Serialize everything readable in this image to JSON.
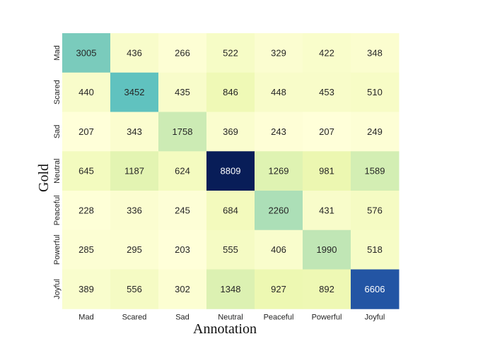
{
  "chart_data": {
    "type": "heatmap",
    "xlabel": "Annotation",
    "ylabel": "Gold",
    "x_categories": [
      "Mad",
      "Scared",
      "Sad",
      "Neutral",
      "Peaceful",
      "Powerful",
      "Joyful"
    ],
    "y_categories": [
      "Mad",
      "Scared",
      "Sad",
      "Neutral",
      "Peaceful",
      "Powerful",
      "Joyful"
    ],
    "values": [
      [
        3005,
        436,
        266,
        522,
        329,
        422,
        348
      ],
      [
        440,
        3452,
        435,
        846,
        448,
        453,
        510
      ],
      [
        207,
        343,
        1758,
        369,
        243,
        207,
        249
      ],
      [
        645,
        1187,
        624,
        8809,
        1269,
        981,
        1589
      ],
      [
        228,
        336,
        245,
        684,
        2260,
        431,
        576
      ],
      [
        285,
        295,
        203,
        555,
        406,
        1990,
        518
      ],
      [
        389,
        556,
        302,
        1348,
        927,
        892,
        6606
      ]
    ],
    "colormap": "YlGnBu",
    "vmin": 203,
    "vmax": 8809,
    "colorbar": false
  }
}
